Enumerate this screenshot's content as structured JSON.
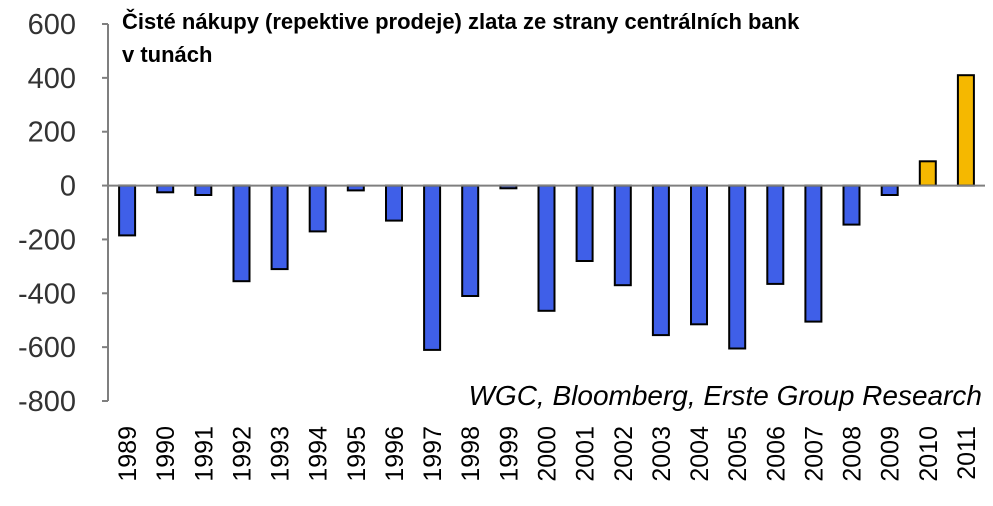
{
  "chart_data": {
    "type": "bar",
    "title_line1": "Čisté nákupy (repektive prodeje) zlata ze strany centrálních bank",
    "title_line2": "v tunách",
    "source_text": "WGC, Bloomberg, Erste Group Research",
    "categories": [
      "1989",
      "1990",
      "1991",
      "1992",
      "1993",
      "1994",
      "1995",
      "1996",
      "1997",
      "1998",
      "1999",
      "2000",
      "2001",
      "2002",
      "2003",
      "2004",
      "2005",
      "2006",
      "2007",
      "2008",
      "2009",
      "2010",
      "2011"
    ],
    "values": [
      -185,
      -25,
      -35,
      -355,
      -310,
      -170,
      -18,
      -130,
      -610,
      -410,
      -10,
      -465,
      -280,
      -370,
      -555,
      -515,
      -605,
      -365,
      -505,
      -145,
      -35,
      90,
      410
    ],
    "ylim": [
      -800,
      600
    ],
    "yticks": [
      600,
      400,
      200,
      0,
      -200,
      -400,
      -600,
      -800
    ],
    "colors": {
      "negative": "#3f5fe8",
      "positive": "#f5b800",
      "outline": "#000000",
      "axis": "#7f7f7f"
    }
  }
}
